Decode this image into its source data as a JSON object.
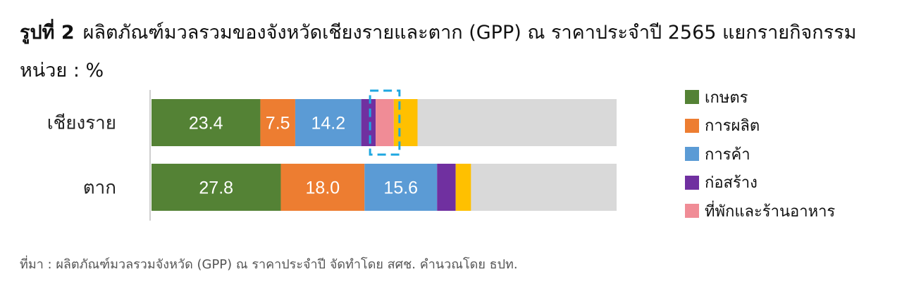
{
  "title": {
    "figure_label": "รูปที่ 2",
    "text": "ผลิตภัณฑ์มวลรวมของจังหวัดเชียงรายและตาก (GPP) ณ ราคาประจำปี 2565 แยกรายกิจกรรม"
  },
  "unit_label": "หน่วย : %",
  "source_note": "ที่มา :  ผลิตภัณฑ์มวลรวมจังหวัด (GPP) ณ ราคาประจำปี จัดทำโดย สศช. คำนวณโดย ธปท.",
  "chart_data": {
    "type": "bar",
    "orientation": "horizontal",
    "stacked": true,
    "categories": [
      "เชียงราย",
      "ตาก"
    ],
    "xlim": [
      0,
      100
    ],
    "series": [
      {
        "name": "เกษตร",
        "color": "#548235",
        "values": [
          23.4,
          27.8
        ],
        "labels": [
          "23.4",
          "27.8"
        ]
      },
      {
        "name": "การผลิต",
        "color": "#ED7D31",
        "values": [
          7.5,
          18.0
        ],
        "labels": [
          "7.5",
          "18.0"
        ]
      },
      {
        "name": "การค้า",
        "color": "#5B9BD5",
        "values": [
          14.2,
          15.6
        ],
        "labels": [
          "14.2",
          "15.6"
        ]
      },
      {
        "name": "ก่อสร้าง",
        "color": "#7030A0",
        "values": [
          3.1,
          4.0
        ],
        "labels": [
          "",
          ""
        ]
      },
      {
        "name": "ที่พักและร้านอาหาร",
        "color": "#F08C96",
        "values": [
          3.9,
          0.0
        ],
        "labels": [
          "",
          ""
        ]
      },
      {
        "name": "",
        "color": "#FFC000",
        "values": [
          5.1,
          3.3
        ],
        "labels": [
          "",
          ""
        ]
      },
      {
        "name": "",
        "color": "#D9D9D9",
        "values": [
          42.8,
          31.3
        ],
        "labels": [
          "",
          ""
        ]
      }
    ],
    "legend_position": "right",
    "highlight": {
      "category": "เชียงราย",
      "series": "ที่พักและร้านอาหาร",
      "style": "dashed-box",
      "color": "#1EA7E0"
    },
    "grid": false
  }
}
